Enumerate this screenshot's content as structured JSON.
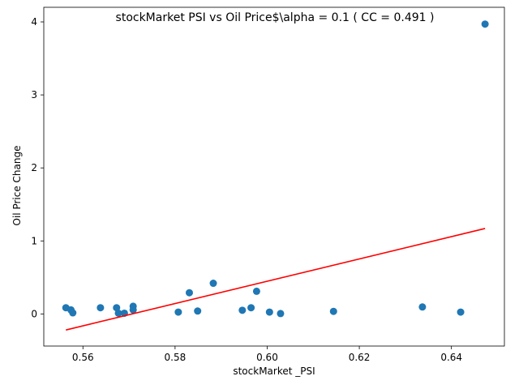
{
  "chart_data": {
    "type": "scatter",
    "title": "stockMarket  PSI vs Oil Price$\\alpha = 0.1 ( CC = 0.491 )",
    "xlabel": "stockMarket _PSI",
    "ylabel": "Oil Price Change",
    "xlim": [
      0.5515,
      0.6515
    ],
    "ylim": [
      -0.44,
      4.2
    ],
    "xticks": [
      0.56,
      0.58,
      0.6,
      0.62,
      0.64
    ],
    "xtick_labels": [
      "0.56",
      "0.58",
      "0.60",
      "0.62",
      "0.64"
    ],
    "yticks": [
      0,
      1,
      2,
      3,
      4
    ],
    "ytick_labels": [
      "0",
      "1",
      "2",
      "3",
      "4"
    ],
    "grid": false,
    "colors": {
      "points": "#1f77b4",
      "fit_line": "#ff0000"
    },
    "series": [
      {
        "kind": "points",
        "x": [
          0.5563,
          0.5574,
          0.5578,
          0.5638,
          0.5673,
          0.5677,
          0.569,
          0.5709,
          0.5709,
          0.5807,
          0.5831,
          0.5849,
          0.5883,
          0.5946,
          0.5965,
          0.5977,
          0.6005,
          0.6029,
          0.6144,
          0.6337,
          0.642,
          0.6473
        ],
        "y": [
          0.085,
          0.055,
          0.015,
          0.085,
          0.085,
          0.01,
          0.01,
          0.105,
          0.055,
          0.025,
          0.29,
          0.04,
          0.42,
          0.05,
          0.085,
          0.31,
          0.025,
          0.005,
          0.035,
          0.095,
          0.025,
          3.97
        ]
      },
      {
        "kind": "fit_line",
        "x": [
          0.5563,
          0.6473
        ],
        "y": [
          -0.22,
          1.17
        ]
      }
    ]
  }
}
